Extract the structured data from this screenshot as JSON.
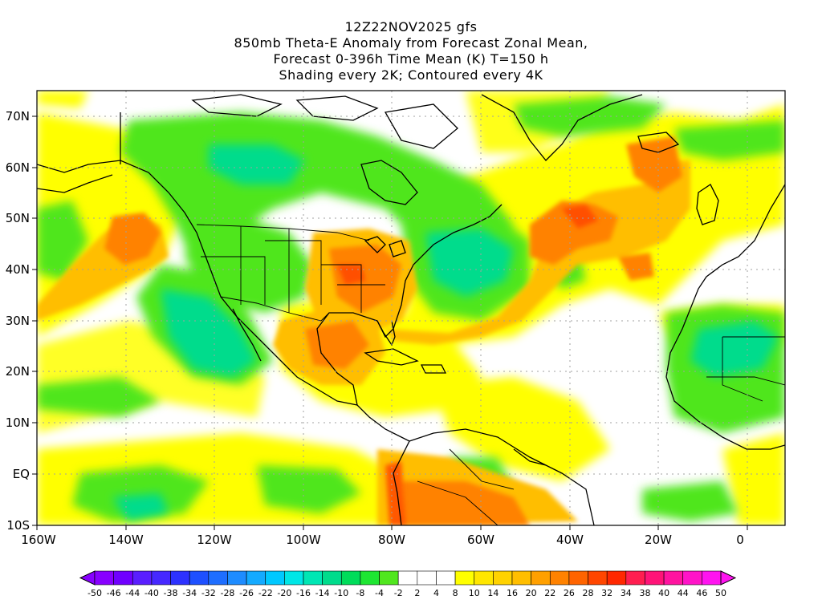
{
  "title": {
    "line1": "12Z22NOV2025 gfs",
    "line2": "850mb Theta-E Anomaly from Forecast Zonal Mean,",
    "line3": "Forecast 0-396h Time Mean (K) T=150 h",
    "line4": "Shading every 2K; Contoured every 4K"
  },
  "lat_ticks": [
    "70N",
    "60N",
    "50N",
    "40N",
    "30N",
    "20N",
    "10N",
    "EQ",
    "10S"
  ],
  "lon_ticks": [
    "160W",
    "140W",
    "120W",
    "100W",
    "80W",
    "60W",
    "40W",
    "20W",
    "0"
  ],
  "colorbar": {
    "labels": [
      "-50",
      "-46",
      "-44",
      "-40",
      "-38",
      "-34",
      "-32",
      "-28",
      "-26",
      "-22",
      "-20",
      "-16",
      "-14",
      "-10",
      "-8",
      "-4",
      "-2",
      "2",
      "4",
      "8",
      "10",
      "14",
      "16",
      "20",
      "22",
      "26",
      "28",
      "32",
      "34",
      "38",
      "40",
      "44",
      "46",
      "50"
    ],
    "colors": [
      "#8800ff",
      "#7000ff",
      "#5a1eff",
      "#4628ff",
      "#2d32ff",
      "#1e50ff",
      "#1e6eff",
      "#1e8cff",
      "#14aaff",
      "#00c8ff",
      "#00e6e6",
      "#00e6b4",
      "#00dc8c",
      "#00dc5a",
      "#1ee632",
      "#50e61e",
      "#ffffff",
      "#ffffff",
      "#ffffff",
      "#ffff00",
      "#ffe600",
      "#ffd200",
      "#ffbe00",
      "#ffa000",
      "#ff8200",
      "#ff6400",
      "#ff4600",
      "#ff2800",
      "#ff1e50",
      "#ff1478",
      "#ff14a0",
      "#ff14c8",
      "#ff14f0"
    ]
  },
  "colors": {
    "positive_weak": "#ffff00",
    "positive_mid": "#ffbe00",
    "positive_strong": "#ff6400",
    "negative_weak": "#50e61e",
    "negative_mid": "#00dc8c",
    "neutral": "#ffffff",
    "coastline": "#000000",
    "grid": "#a0a0a0"
  }
}
